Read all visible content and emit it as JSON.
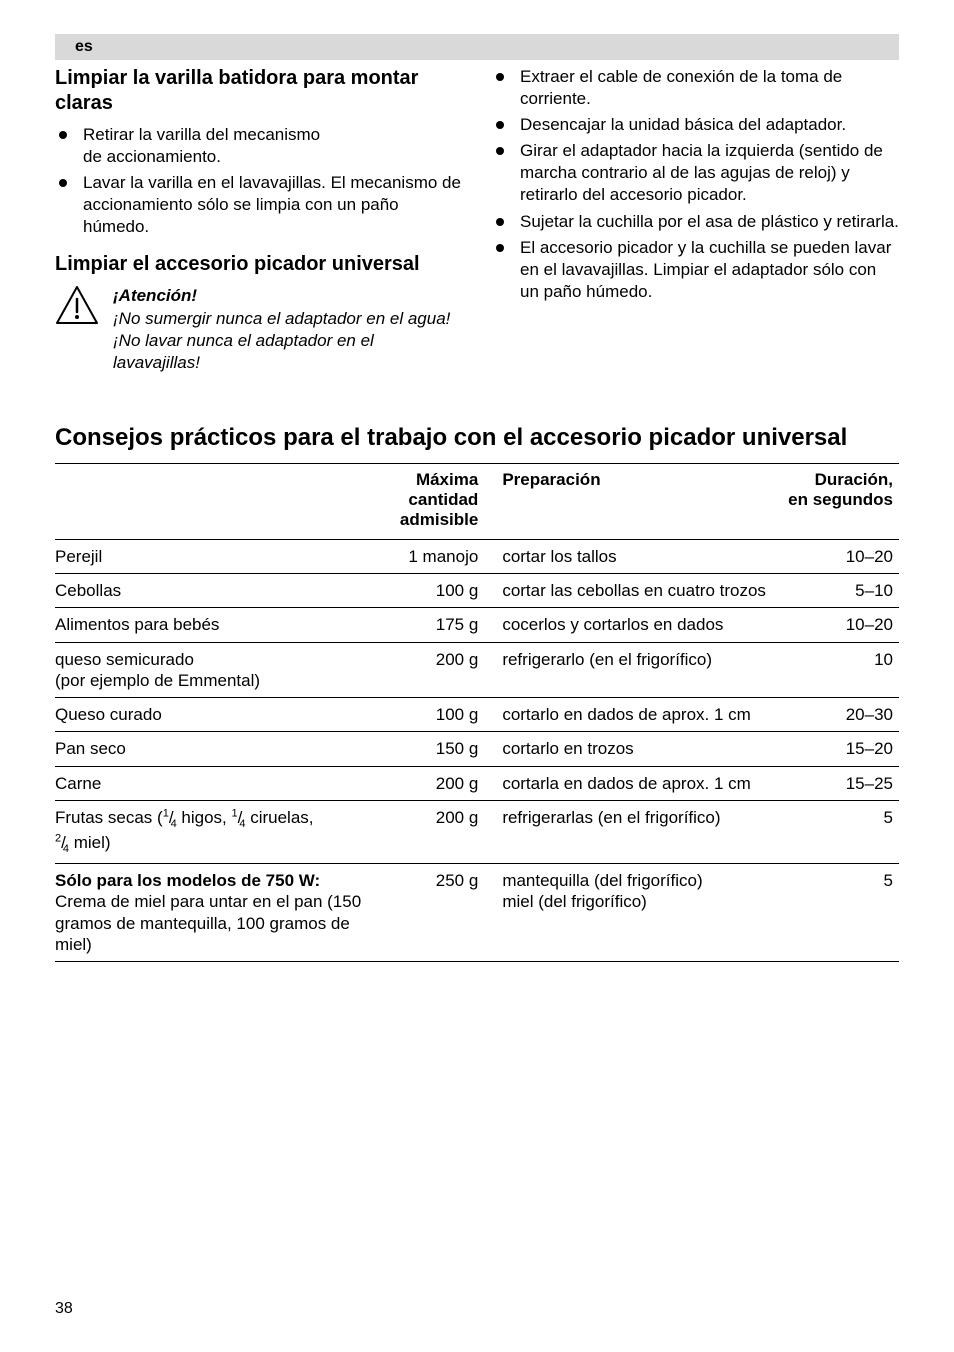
{
  "lang": "es",
  "left": {
    "head1": "Limpiar la varilla batidora para montar claras",
    "b1": "Retirar la varilla del mecanismo de accionamiento.",
    "b2": "Lavar la varilla en el lavavajillas. El mecanismo de accionamiento sólo se limpia con un paño húmedo.",
    "head2": "Limpiar el accesorio picador universal",
    "warn_title": "¡Atención!",
    "warn_body": "¡No sumergir nunca el adaptador en el agua! ¡No lavar nunca el adaptador en el lavavajillas!"
  },
  "right": {
    "b1": "Extraer el cable de conexión de la toma de corriente.",
    "b2": "Desencajar la unidad básica del adaptador.",
    "b3": "Girar el adaptador hacia la izquierda (sentido de marcha contrario al de las agujas de reloj) y retirarlo del accesorio picador.",
    "b4": "Sujetar la cuchilla por el asa de plástico y retirarla.",
    "b5": "El accesorio picador y la cuchilla se pueden lavar en el lavavajillas. Limpiar el adaptador sólo con un paño húmedo."
  },
  "big_head": "Consejos prácticos para el trabajo con el accesorio picador universal",
  "table": {
    "h_qty_l1": "Máxima",
    "h_qty_l2": "cantidad",
    "h_qty_l3": "admisible",
    "h_prep": "Preparación",
    "h_dur_l1": "Duración,",
    "h_dur_l2": "en segundos",
    "rows": [
      {
        "item": "Perejil",
        "qty": "1 manojo",
        "prep": "cortar los tallos",
        "dur": "10–20"
      },
      {
        "item": "Cebollas",
        "qty": "100 g",
        "prep": "cortar las cebollas en cuatro trozos",
        "dur": "5–10"
      },
      {
        "item": "Alimentos para bebés",
        "qty": "175 g",
        "prep": "cocerlos y cortarlos en dados",
        "dur": "10–20"
      },
      {
        "item": "queso semicurado\n(por ejemplo de Emmental)",
        "qty": "200 g",
        "prep": "refrigerarlo (en el frigorífico)",
        "dur": "10"
      },
      {
        "item": "Queso curado",
        "qty": "100 g",
        "prep": "cortarlo en dados de aprox. 1 cm",
        "dur": "20–30"
      },
      {
        "item": "Pan seco",
        "qty": "150 g",
        "prep": "cortarlo en trozos",
        "dur": "15–20"
      },
      {
        "item": "Carne",
        "qty": "200 g",
        "prep": "cortarla en dados de aprox. 1 cm",
        "dur": "15–25"
      },
      {
        "item": "__FRUTAS__",
        "qty": "200 g",
        "prep": "refrigerarlas (en el frigorífico)",
        "dur": "5"
      },
      {
        "item": "__MIEL__",
        "qty": "250 g",
        "prep": "mantequilla (del frigorífico)\nmiel (del frigorífico)",
        "dur": "5"
      }
    ],
    "frutas_a": "Frutas secas (",
    "frutas_b": " higos, ",
    "frutas_c": " ciruelas, ",
    "frutas_d": " miel)",
    "miel_l1": "Sólo para los modelos de 750 W:",
    "miel_l2": "Crema de miel para untar en el pan (150 gramos de mantequilla, 100 gramos de miel)"
  },
  "page": "38"
}
